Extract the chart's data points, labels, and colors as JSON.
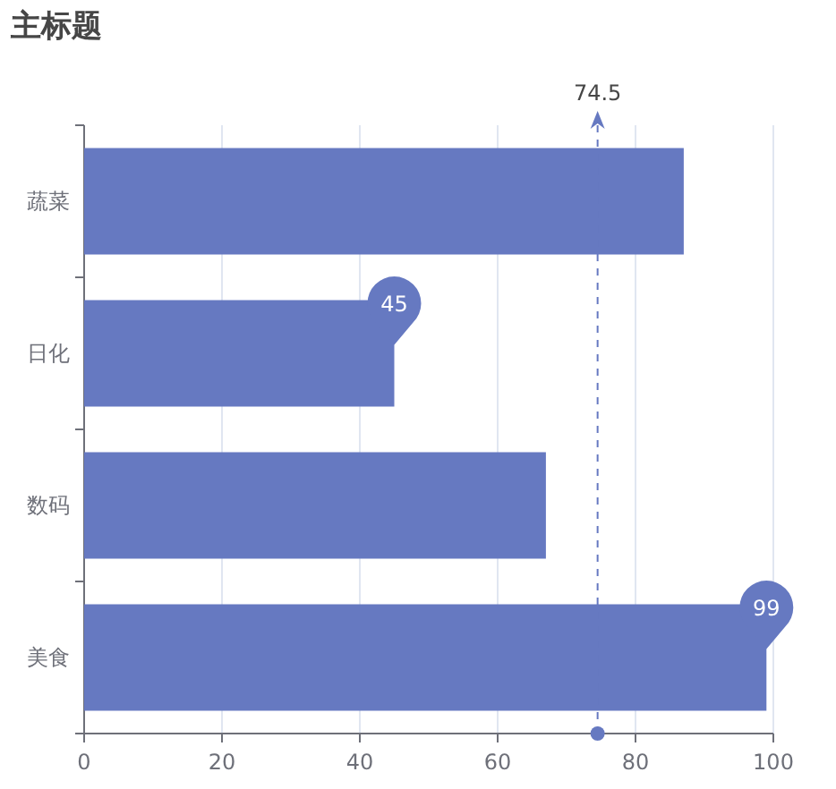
{
  "chart_data": {
    "type": "bar",
    "title": "主标题",
    "orientation": "horizontal",
    "categories": [
      "蔬菜",
      "日化",
      "数码",
      "美食"
    ],
    "values": [
      87,
      45,
      67,
      99
    ],
    "color": "#6679c1",
    "value_labels": [
      null,
      "45",
      null,
      "99"
    ],
    "xlim": [
      0,
      100
    ],
    "xticks": [
      0,
      20,
      40,
      60,
      80,
      100
    ],
    "grid": "x",
    "ref_lines": [
      {
        "axis": "x",
        "value": 74.5,
        "label": "74.5",
        "color": "#6679c1",
        "line_style": "dashed"
      }
    ]
  }
}
